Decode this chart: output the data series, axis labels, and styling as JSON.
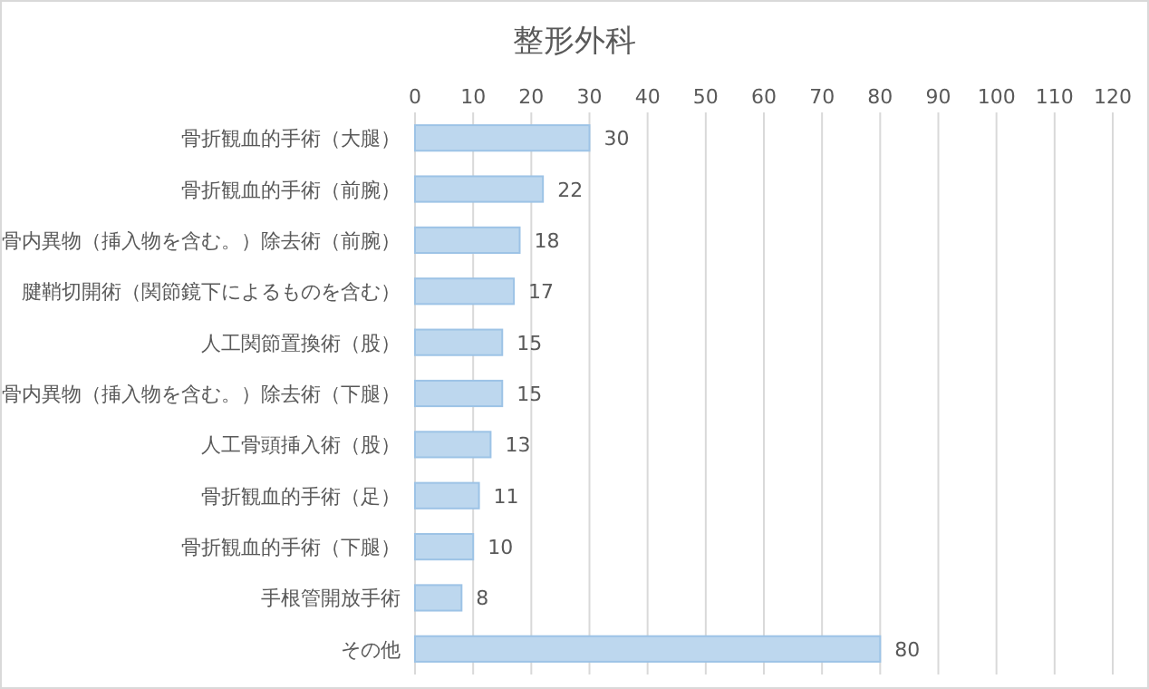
{
  "chart_data": {
    "type": "bar",
    "orientation": "horizontal",
    "title": "整形外科",
    "categories": [
      "骨折観血的手術（大腿）",
      "骨折観血的手術（前腕）",
      "骨内異物（挿入物を含む。）除去術（前腕）",
      "腱鞘切開術（関節鏡下によるものを含む）",
      "人工関節置換術（股）",
      "骨内異物（挿入物を含む。）除去術（下腿）",
      "人工骨頭挿入術（股）",
      "骨折観血的手術（足）",
      "骨折観血的手術（下腿）",
      "手根管開放手術",
      "その他"
    ],
    "values": [
      30,
      22,
      18,
      17,
      15,
      15,
      13,
      11,
      10,
      8,
      80
    ],
    "color": "#bdd7ee",
    "xlim": [
      0,
      120
    ],
    "xticks": [
      0,
      10,
      20,
      30,
      40,
      50,
      60,
      70,
      80,
      90,
      100,
      110,
      120
    ],
    "grid": "x",
    "data_labels": true
  }
}
